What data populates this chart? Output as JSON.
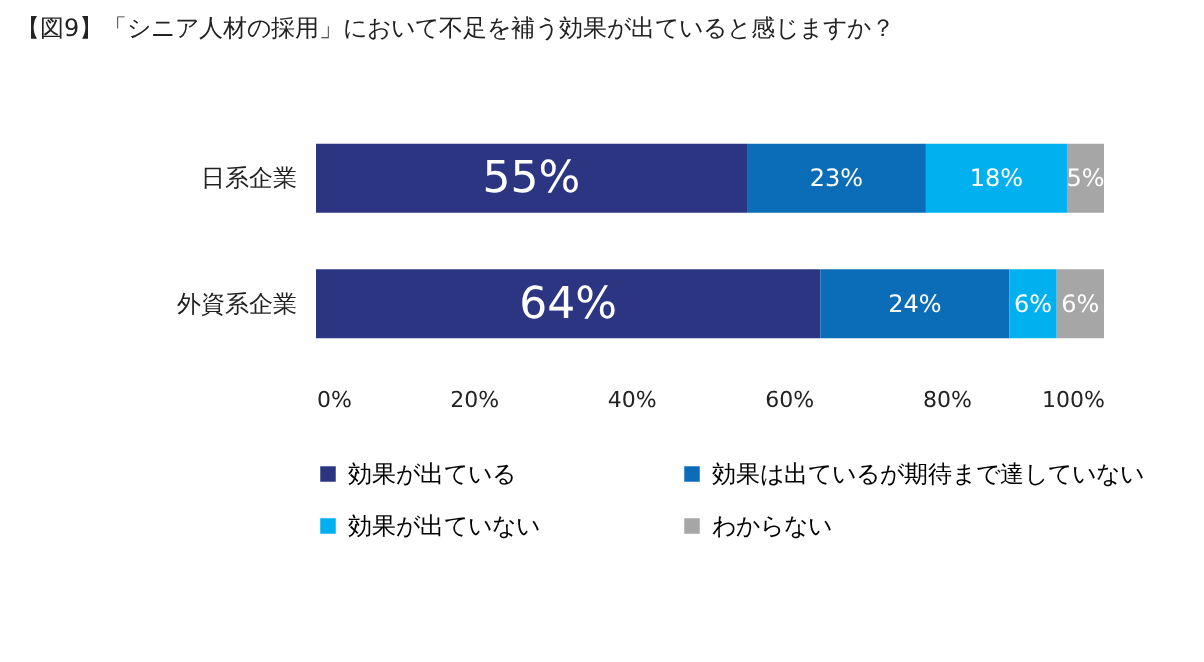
{
  "chart_data": {
    "type": "bar",
    "orientation": "horizontal",
    "stacked": true,
    "title": "【図9】「シニア人材の採用」において不足を補う効果が出ていると感じますか？",
    "categories": [
      "日系企業",
      "外資系企業"
    ],
    "series": [
      {
        "name": "効果が出ている",
        "color": "#2b3582",
        "values": [
          54.7,
          64
        ],
        "value_labels": [
          "55%",
          "64%"
        ]
      },
      {
        "name": "効果は出ているが期待まで達していない",
        "color": "#0b6cb8",
        "values": [
          22.7,
          24
        ],
        "value_labels": [
          "23%",
          "24%"
        ]
      },
      {
        "name": "効果が出ていない",
        "color": "#00b0ef",
        "values": [
          17.9,
          6
        ],
        "value_labels": [
          "18%",
          "6%"
        ]
      },
      {
        "name": "わからない",
        "color": "#a6a6a6",
        "values": [
          4.7,
          6
        ],
        "value_labels": [
          "5%",
          "6%"
        ]
      }
    ],
    "xlim": [
      0,
      100
    ],
    "xticks": [
      {
        "value": 0,
        "label": "0%"
      },
      {
        "value": 20,
        "label": "20%"
      },
      {
        "value": 40,
        "label": "40%"
      },
      {
        "value": 60,
        "label": "60%"
      },
      {
        "value": 80,
        "label": "80%"
      },
      {
        "value": 100,
        "label": "100%"
      }
    ],
    "grid": false,
    "legend": "bottom"
  }
}
